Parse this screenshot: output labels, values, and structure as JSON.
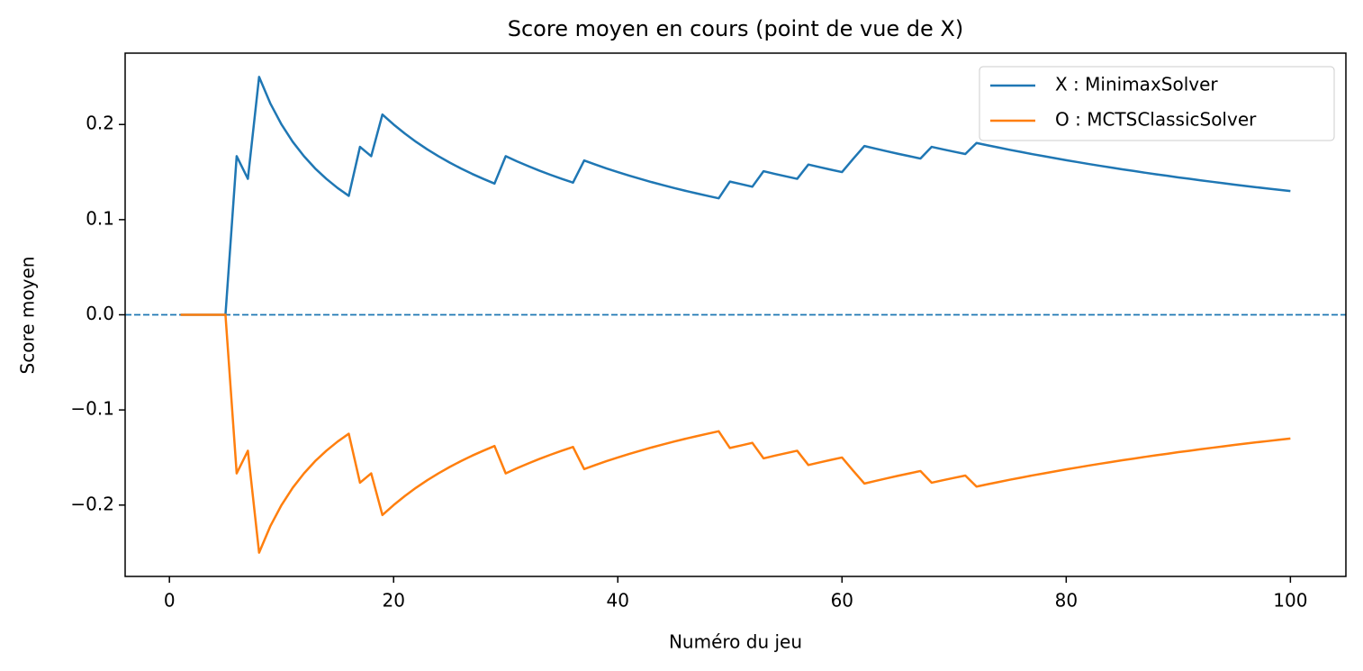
{
  "chart_data": {
    "type": "line",
    "title": "Score moyen en cours (point de vue de X)",
    "xlabel": "Numéro du jeu",
    "ylabel": "Score moyen",
    "x": [
      1,
      2,
      3,
      4,
      5,
      6,
      7,
      8,
      9,
      10,
      11,
      12,
      13,
      14,
      15,
      16,
      17,
      18,
      19,
      20,
      21,
      22,
      23,
      24,
      25,
      26,
      27,
      28,
      29,
      30,
      31,
      32,
      33,
      34,
      35,
      36,
      37,
      38,
      39,
      40,
      41,
      42,
      43,
      44,
      45,
      46,
      47,
      48,
      49,
      50,
      51,
      52,
      53,
      54,
      55,
      56,
      57,
      58,
      59,
      60,
      61,
      62,
      63,
      64,
      65,
      66,
      67,
      68,
      69,
      70,
      71,
      72,
      73,
      74,
      75,
      76,
      77,
      78,
      79,
      80,
      81,
      82,
      83,
      84,
      85,
      86,
      87,
      88,
      89,
      90,
      91,
      92,
      93,
      94,
      95,
      96,
      97,
      98,
      99,
      100
    ],
    "series": [
      {
        "name": "X : MinimaxSolver",
        "color": "#1f77b4",
        "values": [
          0,
          0,
          0,
          0,
          0,
          0.1667,
          0.1429,
          0.25,
          0.2222,
          0.2,
          0.1818,
          0.1667,
          0.1538,
          0.1429,
          0.1333,
          0.125,
          0.1765,
          0.1667,
          0.2105,
          0.2,
          0.1905,
          0.1818,
          0.1739,
          0.1667,
          0.16,
          0.1538,
          0.1481,
          0.1429,
          0.1379,
          0.1667,
          0.1613,
          0.1563,
          0.1515,
          0.1471,
          0.1429,
          0.1389,
          0.1622,
          0.1579,
          0.1538,
          0.15,
          0.1463,
          0.1429,
          0.1395,
          0.1364,
          0.1333,
          0.1304,
          0.1277,
          0.125,
          0.1224,
          0.14,
          0.1373,
          0.1346,
          0.1509,
          0.1481,
          0.1455,
          0.1429,
          0.1579,
          0.1552,
          0.1525,
          0.15,
          0.1639,
          0.1774,
          0.1746,
          0.1719,
          0.1692,
          0.1667,
          0.1642,
          0.1765,
          0.1739,
          0.1714,
          0.169,
          0.1806,
          0.1781,
          0.1757,
          0.1733,
          0.1711,
          0.1688,
          0.1667,
          0.1646,
          0.1625,
          0.1605,
          0.1585,
          0.1566,
          0.1548,
          0.1529,
          0.1512,
          0.1494,
          0.1477,
          0.1461,
          0.1444,
          0.1429,
          0.1413,
          0.1398,
          0.1383,
          0.1368,
          0.1354,
          0.134,
          0.1327,
          0.1313,
          0.13
        ]
      },
      {
        "name": "O : MCTSClassicSolver",
        "color": "#ff7f0e",
        "values": [
          0,
          0,
          0,
          0,
          0,
          -0.1667,
          -0.1429,
          -0.25,
          -0.2222,
          -0.2,
          -0.1818,
          -0.1667,
          -0.1538,
          -0.1429,
          -0.1333,
          -0.125,
          -0.1765,
          -0.1667,
          -0.2105,
          -0.2,
          -0.1905,
          -0.1818,
          -0.1739,
          -0.1667,
          -0.16,
          -0.1538,
          -0.1481,
          -0.1429,
          -0.1379,
          -0.1667,
          -0.1613,
          -0.1563,
          -0.1515,
          -0.1471,
          -0.1429,
          -0.1389,
          -0.1622,
          -0.1579,
          -0.1538,
          -0.15,
          -0.1463,
          -0.1429,
          -0.1395,
          -0.1364,
          -0.1333,
          -0.1304,
          -0.1277,
          -0.125,
          -0.1224,
          -0.14,
          -0.1373,
          -0.1346,
          -0.1509,
          -0.1481,
          -0.1455,
          -0.1429,
          -0.1579,
          -0.1552,
          -0.1525,
          -0.15,
          -0.1639,
          -0.1774,
          -0.1746,
          -0.1719,
          -0.1692,
          -0.1667,
          -0.1642,
          -0.1765,
          -0.1739,
          -0.1714,
          -0.169,
          -0.1806,
          -0.1781,
          -0.1757,
          -0.1733,
          -0.1711,
          -0.1688,
          -0.1667,
          -0.1646,
          -0.1625,
          -0.1605,
          -0.1585,
          -0.1566,
          -0.1548,
          -0.1529,
          -0.1512,
          -0.1494,
          -0.1477,
          -0.1461,
          -0.1444,
          -0.1429,
          -0.1413,
          -0.1398,
          -0.1383,
          -0.1368,
          -0.1354,
          -0.134,
          -0.1327,
          -0.1313,
          -0.13
        ]
      }
    ],
    "hline": {
      "value": 0,
      "color": "#1f77b4",
      "style": "dashed"
    },
    "xlim": [
      -3.95,
      104.95
    ],
    "ylim": [
      -0.275,
      0.275
    ],
    "xticks": [
      0,
      20,
      40,
      60,
      80,
      100
    ],
    "yticks": [
      {
        "value": -0.2,
        "label": "−0.2"
      },
      {
        "value": -0.1,
        "label": "−0.1"
      },
      {
        "value": 0,
        "label": "0.0"
      },
      0.1,
      0.2
    ],
    "grid": false,
    "legend": "upper right"
  }
}
